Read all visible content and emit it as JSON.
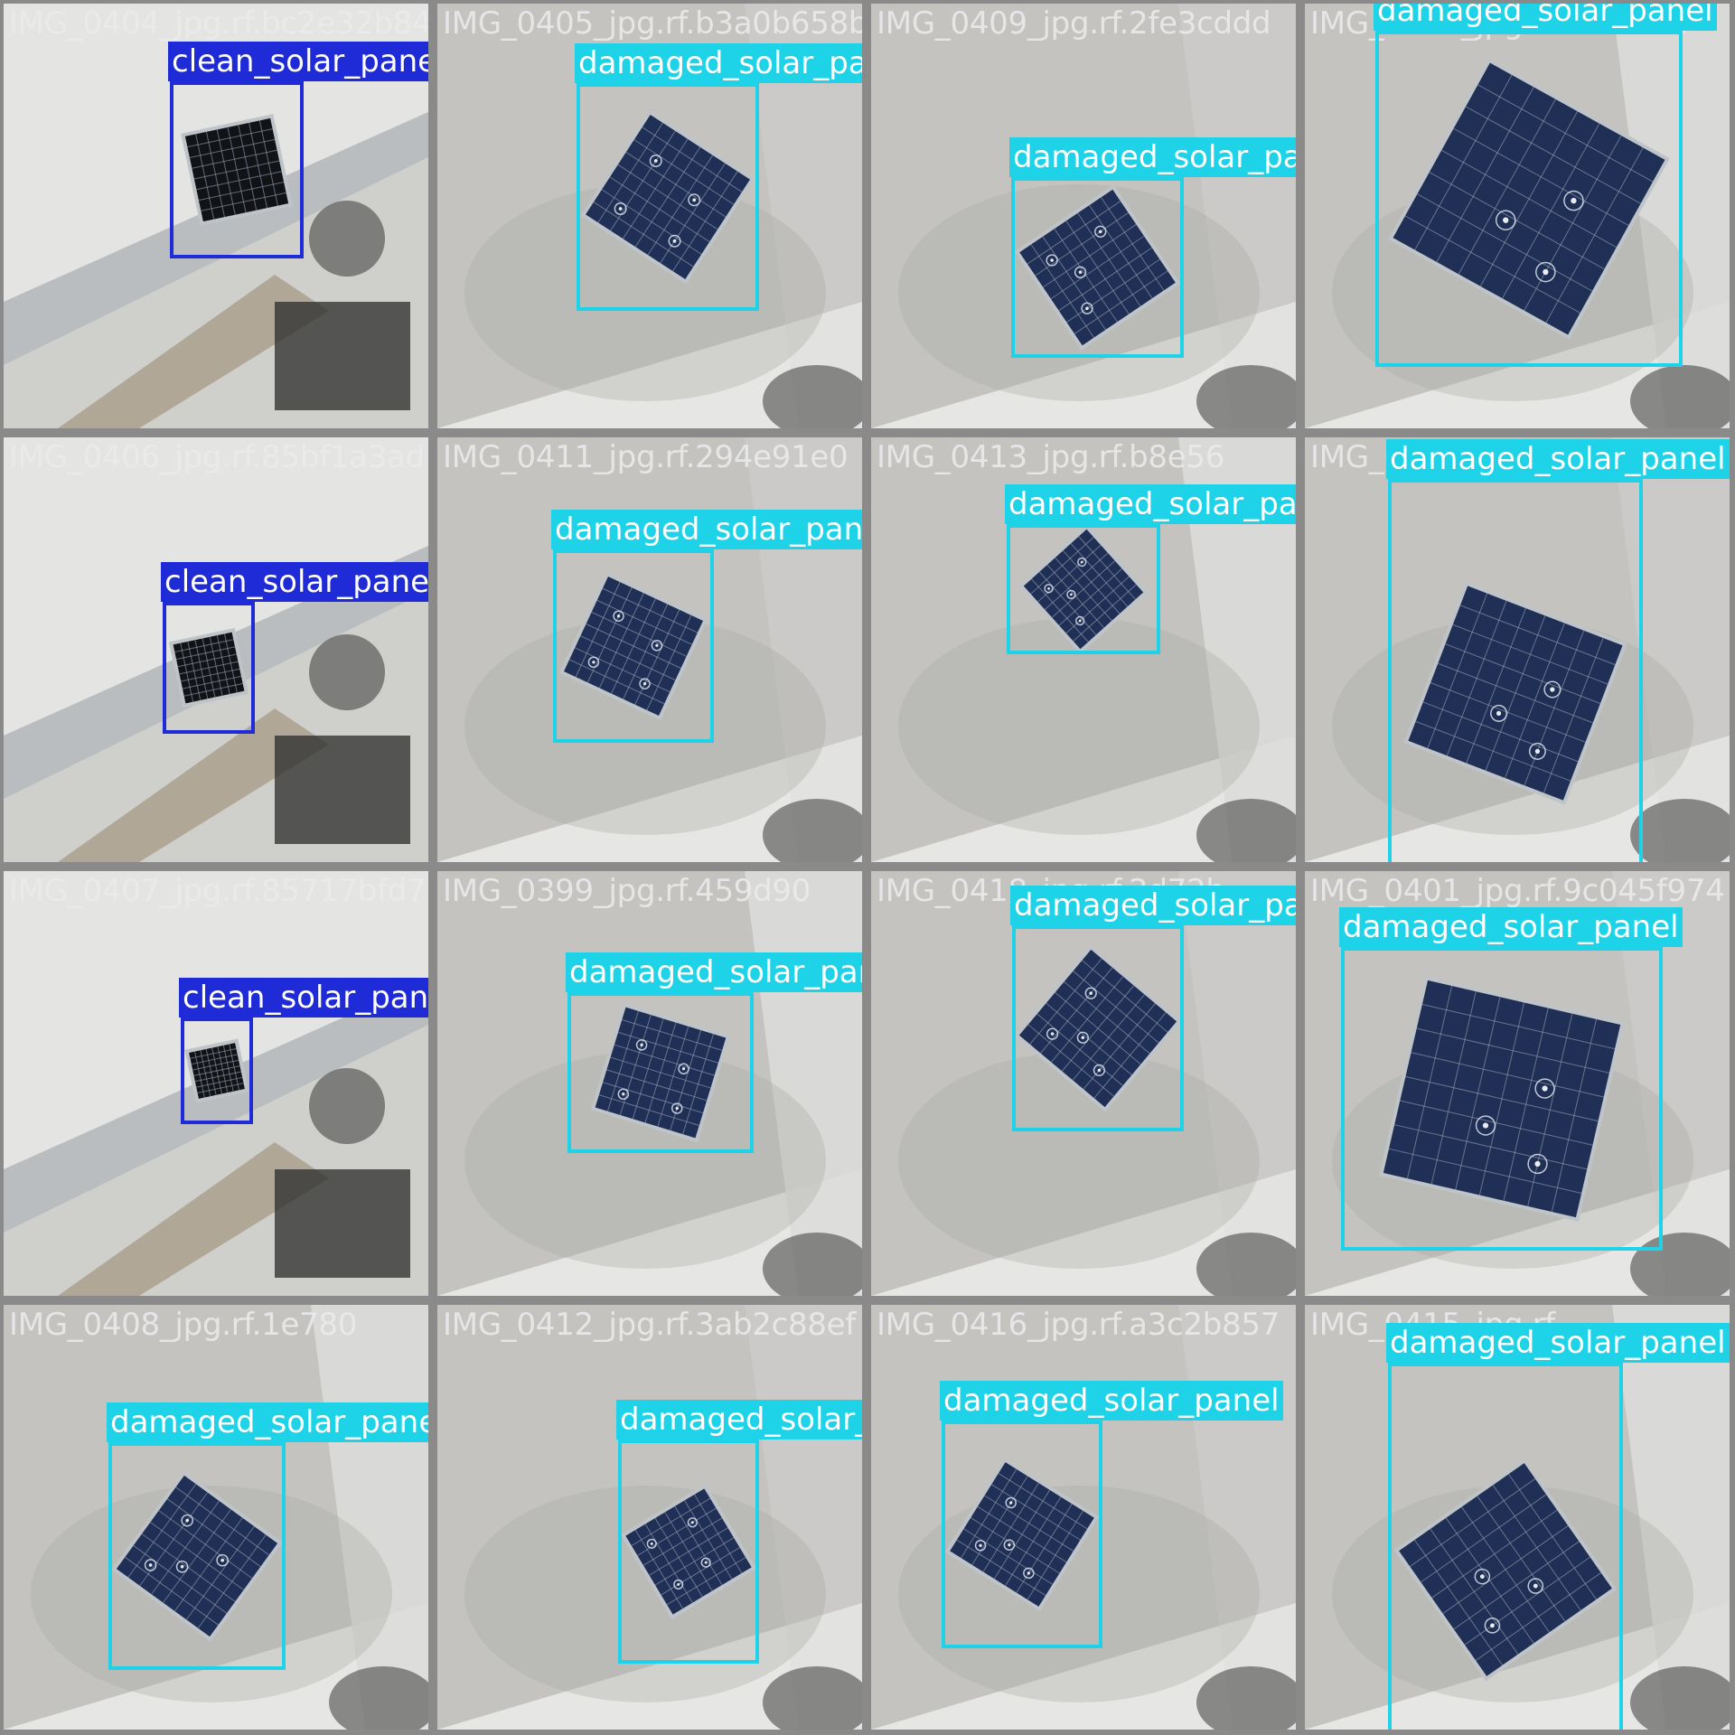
{
  "classes": {
    "clean_solar_panel": {
      "color": "#1f2bd6",
      "text_color": "#ffffff"
    },
    "damaged_solar_panel": {
      "color": "#1ed3e8",
      "text_color": "#ffffff"
    }
  },
  "tiles": [
    {
      "filename": "IMG_0404_jpg.rf.bc2e32b84",
      "labels": [
        "clean_solar_panel"
      ]
    },
    {
      "filename": "IMG_0405_jpg.rf.b3a0b658b",
      "labels": [
        "damaged_solar_panel"
      ]
    },
    {
      "filename": "IMG_0409_jpg.rf.2fe3cddd",
      "labels": [
        "damaged_solar_panel"
      ]
    },
    {
      "filename": "IMG_0410_jpg.rf.106f2b8",
      "labels": [
        "damaged_solar_panel"
      ]
    },
    {
      "filename": "IMG_0406_jpg.rf.85bf1a3ad",
      "labels": [
        "clean_solar_panel"
      ]
    },
    {
      "filename": "IMG_0411_jpg.rf.294e91e0",
      "labels": [
        "damaged_solar_panel"
      ]
    },
    {
      "filename": "IMG_0413_jpg.rf.b8e56",
      "labels": [
        "damaged_solar_panel"
      ]
    },
    {
      "filename": "IMG_0402_jpg.rf",
      "labels": [
        "damaged_solar_panel"
      ]
    },
    {
      "filename": "IMG_0407_jpg.rf.85717bfd7",
      "labels": [
        "clean_solar_panel"
      ]
    },
    {
      "filename": "IMG_0399_jpg.rf.459d90",
      "labels": [
        "damaged_solar_panel"
      ]
    },
    {
      "filename": "IMG_0418_jpg.rf.2d72b",
      "labels": [
        "damaged_solar_panel"
      ]
    },
    {
      "filename": "IMG_0401_jpg.rf.9c045f974",
      "labels": [
        "damaged_solar_panel"
      ]
    },
    {
      "filename": "IMG_0408_jpg.rf.1e780",
      "labels": [
        "damaged_solar_panel"
      ]
    },
    {
      "filename": "IMG_0412_jpg.rf.3ab2c88ef",
      "labels": [
        "damaged_solar_panel"
      ]
    },
    {
      "filename": "IMG_0416_jpg.rf.a3c2b857",
      "labels": [
        "damaged_solar_panel"
      ]
    },
    {
      "filename": "IMG_0415_jpg.rf",
      "labels": [
        "damaged_solar_panel"
      ]
    }
  ]
}
